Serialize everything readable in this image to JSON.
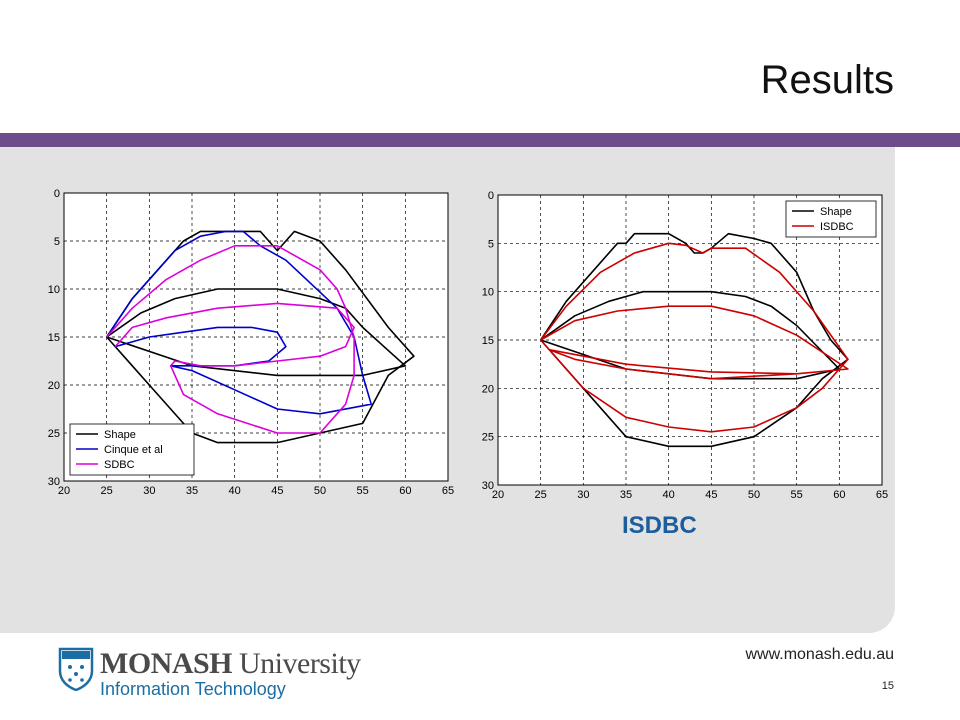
{
  "slide": {
    "title": "Results",
    "caption": "ISDBC",
    "url": "www.monash.edu.au",
    "page_number": "15",
    "accent_color": "#6e4b8b",
    "panel_color": "#e2e2e2"
  },
  "logo": {
    "name_bold": "MONASH",
    "name_rest": " University",
    "subtitle": "Information Technology",
    "icon": "monash-crest-icon"
  },
  "chart_data": [
    {
      "type": "line",
      "xlim": [
        20,
        65
      ],
      "ylim": [
        0,
        30
      ],
      "y_inverted": true,
      "grid": true,
      "legend_position": "bottom-left",
      "xticks": [
        "20",
        "25",
        "30",
        "35",
        "40",
        "45",
        "50",
        "55",
        "60",
        "65"
      ],
      "yticks": [
        "0",
        "5",
        "10",
        "15",
        "20",
        "25",
        "30"
      ],
      "series": [
        {
          "name": "Shape",
          "color": "#000000",
          "lines": [
            [
              [
                25,
                15
              ],
              [
                28,
                11
              ],
              [
                34,
                5
              ],
              [
                36,
                4
              ],
              [
                43,
                4
              ],
              [
                45,
                6
              ],
              [
                47,
                4
              ],
              [
                50,
                5
              ],
              [
                53,
                8
              ],
              [
                58,
                14
              ],
              [
                61,
                17
              ],
              [
                58,
                19
              ],
              [
                55,
                24
              ],
              [
                50,
                25
              ],
              [
                45,
                26
              ],
              [
                38,
                26
              ],
              [
                35,
                25
              ],
              [
                30,
                20
              ],
              [
                25,
                15
              ]
            ],
            [
              [
                25,
                15
              ],
              [
                29,
                12.5
              ],
              [
                33,
                11
              ],
              [
                38,
                10
              ],
              [
                45,
                10
              ],
              [
                50,
                11
              ],
              [
                53,
                12
              ],
              [
                55,
                14
              ],
              [
                60,
                18
              ],
              [
                55,
                19
              ],
              [
                45,
                19
              ],
              [
                35,
                18
              ],
              [
                25,
                15
              ]
            ]
          ]
        },
        {
          "name": "Cinque et al",
          "color": "#0000cc",
          "lines": [
            [
              [
                25,
                15
              ],
              [
                28,
                11
              ],
              [
                31,
                8
              ],
              [
                33,
                6
              ],
              [
                36,
                4.5
              ],
              [
                39,
                4
              ],
              [
                41,
                4
              ],
              [
                43,
                5.5
              ],
              [
                46,
                7
              ],
              [
                49,
                9.5
              ],
              [
                52,
                12
              ],
              [
                54,
                15
              ],
              [
                55,
                19
              ],
              [
                56,
                22
              ],
              [
                50,
                23
              ],
              [
                45,
                22.5
              ],
              [
                40,
                20.5
              ],
              [
                35,
                18.5
              ],
              [
                32.5,
                18
              ],
              [
                35,
                18
              ],
              [
                40,
                18
              ],
              [
                44,
                17.5
              ],
              [
                46,
                16
              ],
              [
                45,
                14.5
              ],
              [
                42,
                14
              ],
              [
                38,
                14
              ],
              [
                34,
                14.5
              ],
              [
                30,
                15
              ],
              [
                26,
                16
              ]
            ]
          ]
        },
        {
          "name": "SDBC",
          "color": "#dd00dd",
          "lines": [
            [
              [
                25,
                15
              ],
              [
                28,
                12
              ],
              [
                32,
                9
              ],
              [
                36,
                7
              ],
              [
                40,
                5.5
              ],
              [
                45,
                5.5
              ],
              [
                50,
                8
              ],
              [
                52,
                10
              ],
              [
                53,
                12
              ],
              [
                54,
                15
              ],
              [
                54,
                19
              ],
              [
                53,
                22
              ],
              [
                50,
                25
              ],
              [
                45,
                25
              ],
              [
                38,
                23
              ],
              [
                34,
                21
              ],
              [
                32.5,
                18
              ],
              [
                33,
                17.5
              ],
              [
                36,
                18
              ],
              [
                40,
                18
              ],
              [
                45,
                17.5
              ],
              [
                50,
                17
              ],
              [
                53,
                16
              ],
              [
                54,
                14
              ],
              [
                52,
                12
              ],
              [
                45,
                11.5
              ],
              [
                38,
                12
              ],
              [
                32,
                13
              ],
              [
                28,
                14
              ],
              [
                26,
                16
              ]
            ]
          ]
        }
      ]
    },
    {
      "type": "line",
      "xlim": [
        20,
        65
      ],
      "ylim": [
        0,
        30
      ],
      "y_inverted": true,
      "grid": true,
      "legend_position": "top-right",
      "xticks": [
        "20",
        "25",
        "30",
        "35",
        "40",
        "45",
        "50",
        "55",
        "60",
        "65"
      ],
      "yticks": [
        "0",
        "5",
        "10",
        "15",
        "20",
        "25",
        "30"
      ],
      "series": [
        {
          "name": "Shape",
          "color": "#000000",
          "lines": [
            [
              [
                25,
                15
              ],
              [
                28,
                11
              ],
              [
                31,
                8
              ],
              [
                34,
                5
              ],
              [
                35,
                5
              ],
              [
                36,
                4
              ],
              [
                40,
                4
              ],
              [
                42,
                5
              ],
              [
                43,
                6
              ],
              [
                44,
                6
              ],
              [
                45,
                5.5
              ],
              [
                47,
                4
              ],
              [
                50,
                4.5
              ],
              [
                52,
                5
              ],
              [
                55,
                8
              ],
              [
                57,
                12
              ],
              [
                59,
                15
              ],
              [
                61,
                17
              ],
              [
                58,
                19
              ],
              [
                55,
                22
              ],
              [
                50,
                25
              ],
              [
                45,
                26
              ],
              [
                40,
                26
              ],
              [
                35,
                25
              ],
              [
                30,
                20
              ],
              [
                25,
                15
              ]
            ],
            [
              [
                25,
                15
              ],
              [
                29,
                12.5
              ],
              [
                33,
                11
              ],
              [
                37,
                10
              ],
              [
                45,
                10
              ],
              [
                49,
                10.5
              ],
              [
                52,
                11.5
              ],
              [
                55,
                13.5
              ],
              [
                60,
                18
              ],
              [
                55,
                19
              ],
              [
                45,
                19
              ],
              [
                40,
                18.5
              ],
              [
                35,
                18
              ],
              [
                25,
                15
              ]
            ]
          ]
        },
        {
          "name": "ISDBC",
          "color": "#cc0000",
          "lines": [
            [
              [
                25,
                15
              ],
              [
                28,
                11.5
              ],
              [
                32,
                8
              ],
              [
                36,
                6
              ],
              [
                40,
                5
              ],
              [
                42,
                5.2
              ],
              [
                44,
                6
              ],
              [
                45,
                5.5
              ],
              [
                49,
                5.5
              ],
              [
                53,
                8
              ],
              [
                57,
                12
              ],
              [
                61,
                17
              ],
              [
                58,
                20
              ],
              [
                55,
                22
              ],
              [
                50,
                24
              ],
              [
                45,
                24.5
              ],
              [
                40,
                24
              ],
              [
                35,
                23
              ],
              [
                30,
                20
              ],
              [
                25,
                15
              ]
            ],
            [
              [
                25,
                15
              ],
              [
                29,
                13
              ],
              [
                34,
                12
              ],
              [
                40,
                11.5
              ],
              [
                45,
                11.5
              ],
              [
                50,
                12.5
              ],
              [
                55,
                14.5
              ],
              [
                61,
                18
              ],
              [
                55,
                18.5
              ],
              [
                45,
                18.3
              ],
              [
                35,
                17.5
              ],
              [
                26,
                16
              ],
              [
                29,
                17
              ],
              [
                35,
                18
              ],
              [
                45,
                19
              ],
              [
                55,
                18.5
              ],
              [
                61,
                18
              ]
            ]
          ]
        }
      ]
    }
  ]
}
